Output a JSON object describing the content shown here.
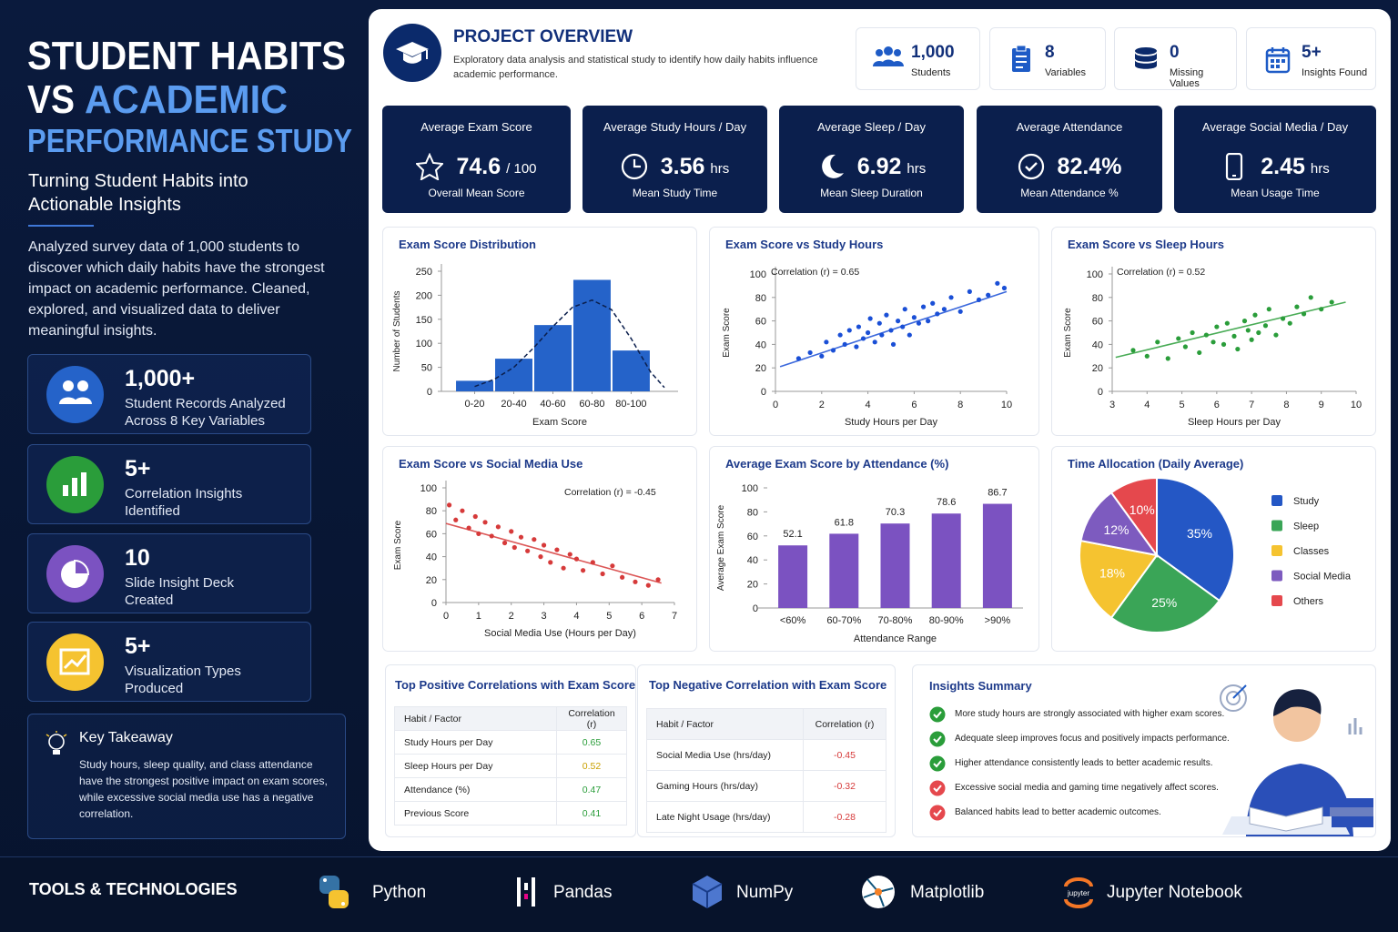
{
  "sidebar": {
    "title_line1": "STUDENT HABITS",
    "title_vs": "VS",
    "title_academic": "ACADEMIC",
    "title_line3": "PERFORMANCE STUDY",
    "subtitle": "Turning Student Habits into Actionable Insights",
    "description": "Analyzed survey data of 1,000 students to discover which daily habits have the strongest impact on academic performance. Cleaned, explored, and visualized data to deliver meaningful insights.",
    "stats": [
      {
        "value": "1,000+",
        "label": [
          "Student Records Analyzed",
          "Across 8 Key Variables"
        ]
      },
      {
        "value": "5+",
        "label": [
          "Correlation Insights",
          "Identified"
        ]
      },
      {
        "value": "10",
        "label": [
          "Slide Insight Deck",
          "Created"
        ]
      },
      {
        "value": "5+",
        "label": [
          "Visualization Types",
          "Produced"
        ]
      }
    ],
    "takeaway": {
      "title": "Key Takeaway",
      "text": "Study hours, sleep quality, and class attendance have the strongest positive impact on exam scores, while excessive social media use has a negative correlation."
    }
  },
  "overview": {
    "title": "PROJECT OVERVIEW",
    "text": "Exploratory data analysis and statistical study to identify how daily habits influence academic performance.",
    "stats": [
      {
        "value": "1,000",
        "label": "Students"
      },
      {
        "value": "8",
        "label": "Variables"
      },
      {
        "value": "0",
        "label": "Missing Values"
      },
      {
        "value": "5+",
        "label": "Insights Found"
      }
    ]
  },
  "kpis": [
    {
      "title": "Average Exam Score",
      "value": "74.6",
      "unit": "/ 100",
      "caption": "Overall Mean Score"
    },
    {
      "title": "Average Study Hours / Day",
      "value": "3.56",
      "unit": "hrs",
      "caption": "Mean Study Time"
    },
    {
      "title": "Average Sleep / Day",
      "value": "6.92",
      "unit": "hrs",
      "caption": "Mean Sleep Duration"
    },
    {
      "title": "Average Attendance",
      "value": "82.4%",
      "unit": "",
      "caption": "Mean Attendance %"
    },
    {
      "title": "Average Social Media / Day",
      "value": "2.45",
      "unit": "hrs",
      "caption": "Mean Usage Time"
    }
  ],
  "chart_data": [
    {
      "type": "histogram",
      "title": "Exam Score Distribution",
      "x_label": "Exam Score",
      "y_label": "Number of Students",
      "color": "#2563c9",
      "bins": [
        0,
        20,
        40,
        60,
        80,
        100
      ],
      "counts": [
        22,
        68,
        138,
        232,
        85
      ],
      "xlim": [
        -7,
        114
      ],
      "xticks": [
        {
          "value": 10,
          "label": "0-20"
        },
        {
          "value": 30,
          "label": "20-40"
        },
        {
          "value": 50,
          "label": "40-60"
        },
        {
          "value": 70,
          "label": "60-80"
        },
        {
          "value": 90,
          "label": "80-100"
        }
      ],
      "ylim": [
        0,
        250
      ],
      "yticks": [
        0,
        50,
        100,
        150,
        200,
        250
      ],
      "fit_curve": {
        "x": [
          10,
          20,
          30,
          40,
          50,
          60,
          70,
          80,
          90,
          100,
          107
        ],
        "y": [
          10,
          25,
          50,
          90,
          135,
          175,
          190,
          170,
          110,
          40,
          8
        ]
      }
    },
    {
      "type": "scatter",
      "title": "Exam Score vs Study Hours",
      "x_label": "Study Hours per Day",
      "y_label": "Exam Score",
      "annotation": "Correlation (r) = 0.65",
      "color": "#1a4fd6",
      "xlim": [
        0,
        10
      ],
      "xticks": [
        0,
        2,
        4,
        6,
        8,
        10
      ],
      "ylim": [
        0,
        100
      ],
      "yticks": [
        0,
        20,
        40,
        60,
        80,
        100
      ],
      "x": [
        1.0,
        1.5,
        2.0,
        2.2,
        2.5,
        2.8,
        3.0,
        3.2,
        3.5,
        3.6,
        3.8,
        4.0,
        4.1,
        4.3,
        4.5,
        4.6,
        4.8,
        5.0,
        5.1,
        5.3,
        5.5,
        5.6,
        5.8,
        6.0,
        6.2,
        6.4,
        6.6,
        6.8,
        7.0,
        7.3,
        7.6,
        8.0,
        8.4,
        8.8,
        9.2,
        9.6,
        9.9
      ],
      "y": [
        28,
        33,
        30,
        42,
        35,
        48,
        40,
        52,
        38,
        55,
        45,
        50,
        62,
        42,
        58,
        48,
        65,
        52,
        40,
        60,
        55,
        70,
        48,
        63,
        58,
        72,
        60,
        75,
        66,
        70,
        80,
        68,
        85,
        78,
        82,
        92,
        88
      ],
      "trend": {
        "x": [
          0.2,
          10
        ],
        "y": [
          21,
          85
        ]
      }
    },
    {
      "type": "scatter",
      "title": "Exam Score vs Sleep Hours",
      "x_label": "Sleep Hours per Day",
      "y_label": "Exam Score",
      "annotation": "Correlation (r) = 0.52",
      "color": "#2a9d3a",
      "xlim": [
        3,
        10
      ],
      "xticks": [
        3,
        4,
        5,
        6,
        7,
        8,
        9,
        10
      ],
      "ylim": [
        0,
        100
      ],
      "yticks": [
        0,
        20,
        40,
        60,
        80,
        100
      ],
      "x": [
        3.6,
        4.0,
        4.3,
        4.6,
        4.9,
        5.1,
        5.3,
        5.5,
        5.7,
        5.9,
        6.0,
        6.2,
        6.3,
        6.5,
        6.6,
        6.8,
        6.9,
        7.0,
        7.1,
        7.2,
        7.4,
        7.5,
        7.7,
        7.9,
        8.1,
        8.3,
        8.5,
        8.7,
        9.0,
        9.3
      ],
      "y": [
        35,
        30,
        42,
        28,
        45,
        38,
        50,
        33,
        48,
        42,
        55,
        40,
        58,
        47,
        36,
        60,
        52,
        44,
        65,
        50,
        56,
        70,
        48,
        62,
        58,
        72,
        66,
        80,
        70,
        76
      ],
      "trend": {
        "x": [
          3.1,
          9.7
        ],
        "y": [
          29,
          76
        ]
      }
    },
    {
      "type": "scatter",
      "title": "Exam Score vs Social Media Use",
      "x_label": "Social Media Use (Hours per Day)",
      "y_label": "Exam Score",
      "annotation": "Correlation (r) = -0.45",
      "color": "#d63a3a",
      "xlim": [
        0,
        7
      ],
      "xticks": [
        0,
        1,
        2,
        3,
        4,
        5,
        6,
        7
      ],
      "ylim": [
        0,
        100
      ],
      "yticks": [
        0,
        20,
        40,
        60,
        80,
        100
      ],
      "x": [
        0.1,
        0.3,
        0.5,
        0.7,
        0.9,
        1.0,
        1.2,
        1.4,
        1.6,
        1.8,
        2.0,
        2.1,
        2.3,
        2.5,
        2.7,
        2.9,
        3.0,
        3.2,
        3.4,
        3.6,
        3.8,
        4.0,
        4.2,
        4.5,
        4.8,
        5.1,
        5.4,
        5.8,
        6.2,
        6.5
      ],
      "y": [
        85,
        72,
        80,
        65,
        75,
        60,
        70,
        58,
        66,
        52,
        62,
        48,
        57,
        45,
        55,
        40,
        50,
        35,
        46,
        30,
        42,
        38,
        28,
        35,
        25,
        32,
        22,
        18,
        15,
        20
      ],
      "trend": {
        "x": [
          0,
          6.6
        ],
        "y": [
          69,
          17
        ]
      }
    },
    {
      "type": "bar",
      "title": "Average Exam Score by Attendance (%)",
      "x_label": "Attendance Range",
      "y_label": "Average Exam Score",
      "color": "#7b52c1",
      "categories": [
        "<60%",
        "60-70%",
        "70-80%",
        "80-90%",
        ">90%"
      ],
      "values": [
        52.1,
        61.8,
        70.3,
        78.6,
        86.7
      ],
      "ylim": [
        0,
        100
      ],
      "yticks": [
        0,
        20,
        40,
        60,
        80,
        100
      ]
    },
    {
      "type": "pie",
      "title": "Time Allocation (Daily Average)",
      "categories": [
        "Study",
        "Sleep",
        "Classes",
        "Social Media",
        "Others"
      ],
      "values": [
        35,
        25,
        18,
        12,
        10
      ],
      "value_labels": [
        "35%",
        "25%",
        "18%",
        "12%",
        "10%"
      ],
      "colors": [
        "#2457c5",
        "#3aa557",
        "#f5c330",
        "#7d5bbf",
        "#e5484d"
      ]
    }
  ],
  "tables": [
    {
      "title": "Top Positive Correlations with Exam Score",
      "header": [
        "Habit / Factor",
        "Correlation (r)"
      ],
      "rows": [
        [
          "Study Hours per Day",
          0.65
        ],
        [
          "Sleep Hours per Day",
          0.52
        ],
        [
          "Attendance (%)",
          0.47
        ],
        [
          "Previous Score",
          0.41
        ]
      ],
      "value_colors": [
        "#2a9d3a",
        "#c9a000",
        "#2a9d3a",
        "#2a9d3a"
      ]
    },
    {
      "title": "Top Negative Correlation with Exam Score",
      "header": [
        "Habit / Factor",
        "Correlation (r)"
      ],
      "rows": [
        [
          "Social Media Use (hrs/day)",
          -0.45
        ],
        [
          "Gaming Hours (hrs/day)",
          -0.32
        ],
        [
          "Late Night Usage (hrs/day)",
          -0.28
        ]
      ],
      "value_colors": [
        "#d63a3a",
        "#d63a3a",
        "#d63a3a"
      ]
    }
  ],
  "insights": {
    "title": "Insights Summary",
    "items": [
      {
        "text": "More study hours are strongly associated with higher exam scores.",
        "positive": true
      },
      {
        "text": "Adequate sleep improves focus and positively impacts performance.",
        "positive": true
      },
      {
        "text": "Higher attendance consistently leads to better academic results.",
        "positive": true
      },
      {
        "text": "Excessive social media and gaming time negatively affect scores.",
        "positive": false
      },
      {
        "text": "Balanced habits lead to better academic outcomes.",
        "positive": false
      }
    ]
  },
  "tools": {
    "title": "TOOLS & TECHNOLOGIES",
    "items": [
      "Python",
      "Pandas",
      "NumPy",
      "Matplotlib",
      "Jupyter Notebook"
    ]
  }
}
